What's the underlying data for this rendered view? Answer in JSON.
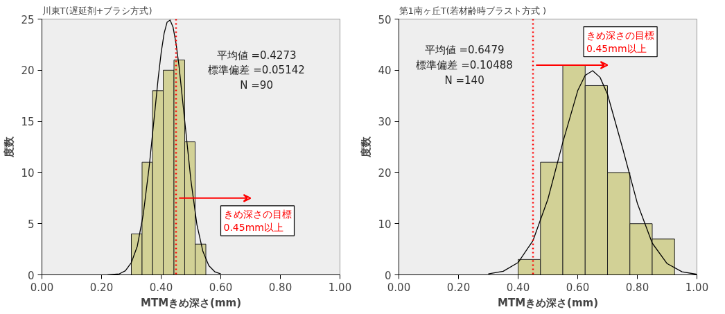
{
  "chart_data": [
    {
      "type": "histogram",
      "title": "川東T(遅延剤+ブラシ方式)",
      "xlabel": "MTMきめ深さ(mm)",
      "ylabel": "度数",
      "xlim": [
        0,
        1
      ],
      "ylim": [
        0,
        25
      ],
      "xticks": [
        {
          "value": 0,
          "label": "0.00"
        },
        {
          "value": 0.2,
          "label": "0.20"
        },
        {
          "value": 0.4,
          "label": "0.40"
        },
        {
          "value": 0.6,
          "label": "0.60"
        },
        {
          "value": 0.8,
          "label": "0.80"
        },
        {
          "value": 1,
          "label": "1.00"
        }
      ],
      "yticks": [
        0,
        5,
        10,
        15,
        20,
        25
      ],
      "grid": false,
      "series": [
        {
          "color": "#d2d196",
          "bins": [
            0.3,
            0.336,
            0.371,
            0.407,
            0.443,
            0.479,
            0.514,
            0.55
          ],
          "values": [
            4,
            11,
            18,
            20,
            21,
            13,
            3
          ]
        },
        {
          "type": "line",
          "color": "#000000",
          "x": [
            0.22,
            0.26,
            0.28,
            0.3,
            0.32,
            0.34,
            0.36,
            0.38,
            0.39,
            0.4,
            0.41,
            0.42,
            0.43,
            0.44,
            0.45,
            0.46,
            0.48,
            0.5,
            0.52,
            0.54,
            0.56,
            0.58,
            0.6
          ],
          "values": [
            0,
            0.1,
            0.4,
            1.2,
            2.8,
            5.9,
            10.6,
            16.3,
            19.2,
            21.7,
            23.6,
            24.7,
            24.9,
            24.2,
            22.6,
            20.4,
            14.8,
            9.2,
            4.9,
            2.3,
            0.9,
            0.3,
            0.1
          ]
        }
      ],
      "ref_lines": [
        {
          "axis": "x",
          "value": 0.45,
          "label": "きめ深さの目標\n0.45mm以上",
          "color": "#ff0000",
          "line_style": "dotted"
        }
      ],
      "annotations": [
        "平均値 =0.4273\n標準偏差 =0.05142\nN =90"
      ]
    },
    {
      "type": "histogram",
      "title": "第1南ヶ丘T(若材齢時ブラスト方式 )",
      "xlabel": "MTMきめ深さ(mm)",
      "ylabel": "度数",
      "xlim": [
        0,
        1
      ],
      "ylim": [
        0,
        50
      ],
      "xticks": [
        {
          "value": 0,
          "label": "0.00"
        },
        {
          "value": 0.2,
          "label": "0.20"
        },
        {
          "value": 0.4,
          "label": "0.40"
        },
        {
          "value": 0.6,
          "label": "0.60"
        },
        {
          "value": 0.8,
          "label": "0.80"
        },
        {
          "value": 1,
          "label": "1.00"
        }
      ],
      "yticks": [
        0,
        10,
        20,
        30,
        40,
        50
      ],
      "grid": false,
      "series": [
        {
          "color": "#d2d196",
          "bins": [
            0.4,
            0.475,
            0.55,
            0.625,
            0.7,
            0.775,
            0.85,
            0.925
          ],
          "values": [
            3,
            22,
            41,
            37,
            20,
            10,
            7
          ]
        },
        {
          "type": "line",
          "color": "#000000",
          "x": [
            0.3,
            0.35,
            0.4,
            0.45,
            0.5,
            0.55,
            0.6,
            0.625,
            0.65,
            0.675,
            0.7,
            0.75,
            0.8,
            0.85,
            0.9,
            0.95,
            1.0
          ],
          "values": [
            0.2,
            0.7,
            2.4,
            6.7,
            14.8,
            25.9,
            36.0,
            39.0,
            39.9,
            38.6,
            35.3,
            24.9,
            14.0,
            6.2,
            2.2,
            0.6,
            0.1
          ]
        }
      ],
      "ref_lines": [
        {
          "axis": "x",
          "value": 0.45,
          "label": "きめ深さの目標\n0.45mm以上",
          "color": "#ff0000",
          "line_style": "dotted"
        }
      ],
      "annotations": [
        "平均値 =0.6479\n標準偏差 =0.10488\nN =140"
      ]
    }
  ]
}
